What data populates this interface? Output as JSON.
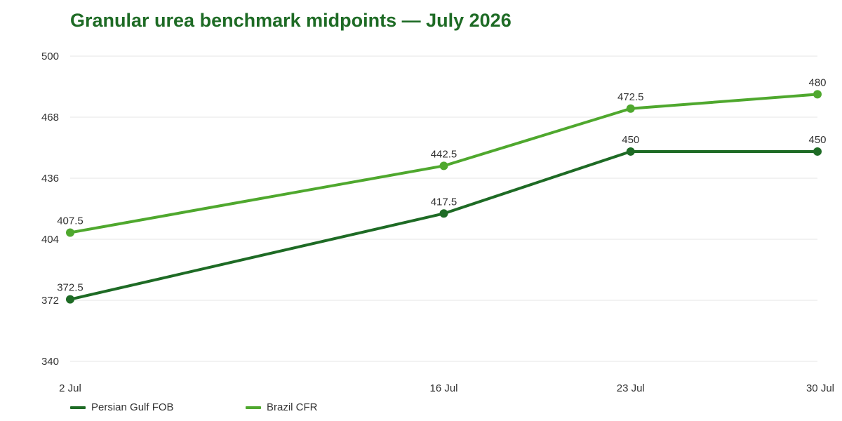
{
  "chart_data": {
    "type": "line",
    "title": "Granular urea benchmark midpoints — July 2026",
    "xlabel": "",
    "ylabel": "",
    "categories": [
      "2 Jul",
      "16 Jul",
      "23 Jul",
      "30 Jul"
    ],
    "x_days": [
      2,
      16,
      23,
      30
    ],
    "ylim": [
      340,
      500
    ],
    "yticks": [
      340,
      372,
      404,
      436,
      468,
      500
    ],
    "grid": true,
    "legend": "bottom-left",
    "series": [
      {
        "name": "Persian Gulf FOB",
        "color": "#1e6b25",
        "values": [
          372.5,
          417.5,
          450,
          450
        ],
        "labels": [
          "372.5",
          "417.5",
          "450",
          "450"
        ]
      },
      {
        "name": "Brazil CFR",
        "color": "#4fa82e",
        "values": [
          407.5,
          442.5,
          472.5,
          480
        ],
        "labels": [
          "407.5",
          "442.5",
          "472.5",
          "480"
        ]
      }
    ]
  }
}
